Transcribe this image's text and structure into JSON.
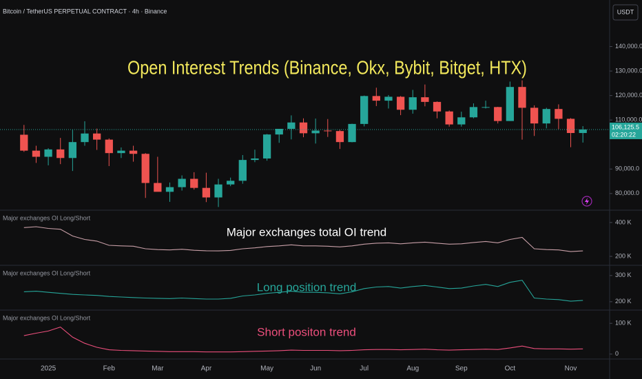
{
  "chart_data": [
    {
      "type": "candlestick",
      "header": "Bitcoin / TetherUS PERPETUAL CONTRACT · 4h · Binance",
      "currency": "USDT",
      "title": "Open Interest Trends (Binance, Okx, Bybit, Bitget, HTX)",
      "categories": [
        null,
        null,
        "2025",
        null,
        null,
        null,
        null,
        "Feb",
        null,
        null,
        null,
        "Mar",
        null,
        null,
        null,
        "Apr",
        null,
        null,
        null,
        null,
        "May",
        null,
        null,
        null,
        "Jun",
        null,
        null,
        null,
        "Jul",
        null,
        null,
        null,
        "Aug",
        null,
        null,
        null,
        "Sep",
        null,
        null,
        null,
        "Oct",
        null,
        null,
        null,
        null,
        "Nov",
        null
      ],
      "open": [
        104000,
        97500,
        95000,
        98000,
        94500,
        101000,
        104500,
        102000,
        96500,
        97500,
        96200,
        84300,
        80700,
        82600,
        86000,
        82300,
        78400,
        83700,
        85200,
        93700,
        94300,
        104100,
        106400,
        109000,
        104600,
        105700,
        105500,
        101000,
        108400,
        119800,
        117900,
        119500,
        114200,
        119300,
        117400,
        113500,
        108200,
        111100,
        115300,
        115300,
        109600,
        123500,
        115000,
        108600,
        114500,
        110500,
        104700
      ],
      "high": [
        108000,
        99500,
        98500,
        102700,
        106000,
        109500,
        106500,
        102500,
        98800,
        99500,
        96500,
        95000,
        84500,
        87400,
        88700,
        88500,
        86000,
        86500,
        95700,
        97900,
        104300,
        105800,
        111900,
        110700,
        110600,
        110400,
        106000,
        108500,
        120000,
        123200,
        120200,
        119800,
        122300,
        124500,
        117600,
        113900,
        113400,
        116800,
        117900,
        115400,
        125700,
        126200,
        116000,
        115000,
        116400,
        110800,
        107500
      ],
      "low": [
        97000,
        92500,
        91500,
        92000,
        89200,
        99500,
        97800,
        91200,
        94500,
        93000,
        78200,
        81500,
        76600,
        81200,
        81600,
        76500,
        74500,
        83000,
        84000,
        92800,
        93400,
        100700,
        102100,
        103000,
        100400,
        103100,
        98200,
        100900,
        107400,
        115700,
        114700,
        112000,
        112600,
        115600,
        110700,
        107300,
        107300,
        110700,
        114700,
        108600,
        109600,
        102000,
        103500,
        106600,
        106300,
        98900,
        100800
      ],
      "close": [
        97500,
        95000,
        98000,
        94500,
        101000,
        104500,
        102000,
        96500,
        97500,
        96200,
        84300,
        80700,
        82600,
        86000,
        82300,
        78400,
        83700,
        85200,
        93700,
        94300,
        104100,
        106400,
        109000,
        104600,
        105700,
        105500,
        101000,
        108400,
        119800,
        117900,
        119500,
        114200,
        119300,
        117400,
        113500,
        108200,
        111100,
        115300,
        115300,
        109600,
        123500,
        115000,
        108600,
        114500,
        110500,
        104700,
        106125.5
      ],
      "up_color": "#26a69a",
      "down_color": "#ef5350",
      "ylim": [
        73200,
        159000
      ],
      "yticks": [
        {
          "value": 80000,
          "label": "80,000.0"
        },
        {
          "value": 90000,
          "label": "90,000.0"
        },
        {
          "value": 110000,
          "label": "110,000.0"
        },
        {
          "value": 120000,
          "label": "120,000.0"
        },
        {
          "value": 130000,
          "label": "130,000.0"
        },
        {
          "value": 140000,
          "label": "140,000.0"
        }
      ],
      "last_price": {
        "value": 106125.5,
        "label": "106,125.5"
      },
      "countdown": "02:20:22"
    },
    {
      "type": "line",
      "title": "Major exchanges total OI trend",
      "series": [
        {
          "name": "Major exchanges OI Long/Short",
          "color": "#c9a0a8",
          "values": [
            370000,
            375000,
            365000,
            360000,
            320000,
            300000,
            290000,
            265000,
            262000,
            260000,
            245000,
            240000,
            238000,
            242000,
            236000,
            233000,
            232000,
            235000,
            245000,
            250000,
            258000,
            262000,
            268000,
            262000,
            262000,
            260000,
            256000,
            262000,
            272000,
            278000,
            280000,
            274000,
            280000,
            284000,
            278000,
            272000,
            274000,
            282000,
            288000,
            280000,
            300000,
            312000,
            245000,
            240000,
            238000,
            228000,
            232000
          ]
        }
      ],
      "ylim": [
        147000,
        473000
      ],
      "yticks": [
        {
          "value": 200000,
          "label": "200 K"
        },
        {
          "value": 400000,
          "label": "400 K"
        }
      ]
    },
    {
      "type": "line",
      "title": "Long position trend",
      "series": [
        {
          "name": "Major exchanges OI Long/Short",
          "color": "#26a69a",
          "values": [
            238000,
            240000,
            236000,
            232000,
            228000,
            226000,
            224000,
            220000,
            218000,
            216000,
            214000,
            213000,
            212000,
            214000,
            212000,
            210000,
            210000,
            213000,
            222000,
            226000,
            232000,
            236000,
            240000,
            236000,
            236000,
            234000,
            230000,
            238000,
            250000,
            256000,
            258000,
            252000,
            258000,
            262000,
            256000,
            250000,
            252000,
            260000,
            266000,
            258000,
            274000,
            282000,
            214000,
            210000,
            208000,
            202000,
            205000
          ]
        }
      ],
      "ylim": [
        168000,
        339000
      ],
      "yticks": [
        {
          "value": 200000,
          "label": "200 K"
        },
        {
          "value": 300000,
          "label": "300 K"
        }
      ]
    },
    {
      "type": "line",
      "title": "Short positon trend",
      "series": [
        {
          "name": "Major exchanges OI Long/Short",
          "color": "#ec4f7c",
          "values": [
            60000,
            68000,
            75000,
            88000,
            55000,
            35000,
            22000,
            14000,
            12000,
            11000,
            10000,
            9000,
            8000,
            8000,
            8000,
            7000,
            7000,
            7000,
            8000,
            9000,
            10000,
            11000,
            13000,
            12000,
            12000,
            12000,
            11000,
            12000,
            14000,
            15000,
            15000,
            14000,
            15000,
            16000,
            14000,
            13000,
            14000,
            15000,
            16000,
            15000,
            20000,
            26000,
            18000,
            17000,
            17000,
            16000,
            17000
          ]
        }
      ],
      "ylim": [
        -16000,
        143000
      ],
      "yticks": [
        0,
        {
          "value": 100000,
          "label": "100 K"
        }
      ]
    }
  ]
}
